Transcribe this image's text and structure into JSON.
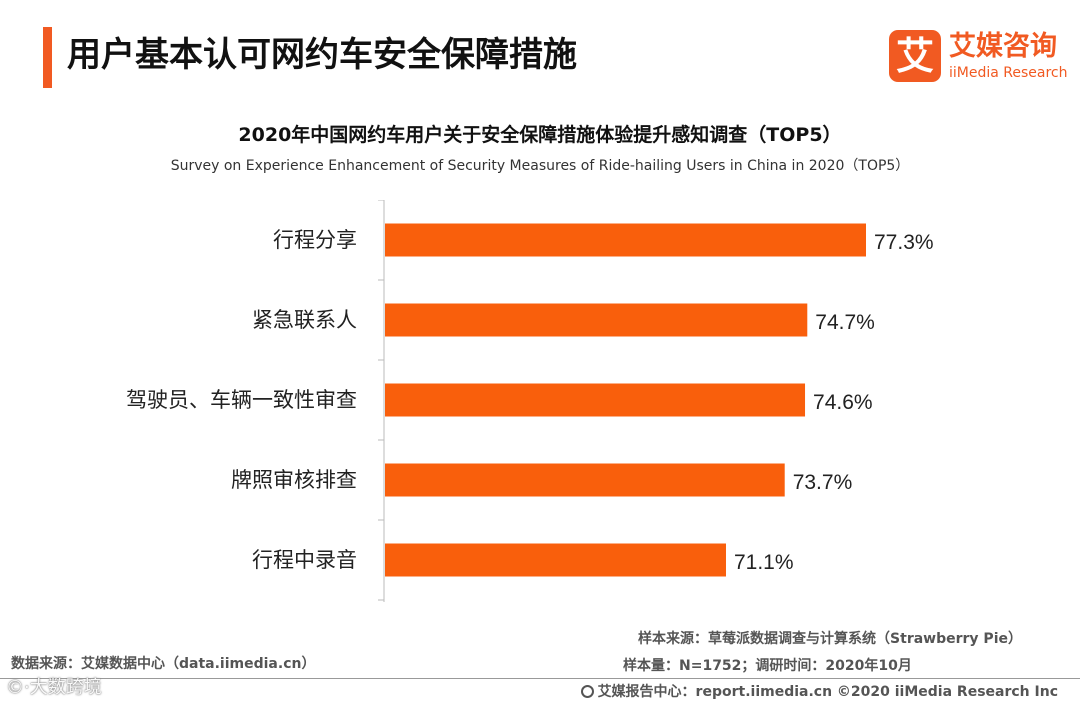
{
  "header": {
    "title": "用户基本认可网约车安全保障措施"
  },
  "logo": {
    "mark": "艾",
    "name_cn": "艾媒咨询",
    "name_en": "iiMedia Research"
  },
  "colors": {
    "accent": "#f15a22",
    "bar": "#f95f0c",
    "axis": "#bbbbbb"
  },
  "chart_data": {
    "type": "bar",
    "orientation": "horizontal",
    "title": "2020年中国网约车用户关于安全保障措施体验提升感知调查（TOP5）",
    "subtitle": "Survey on Experience Enhancement of Security Measures of Ride-hailing Users in China in 2020（TOP5）",
    "categories": [
      "行程分享",
      "紧急联系人",
      "驾驶员、车辆一致性审查",
      "牌照审核排查",
      "行程中录音"
    ],
    "values": [
      77.3,
      74.7,
      74.6,
      73.7,
      71.1
    ],
    "value_labels": [
      "77.3%",
      "74.7%",
      "74.6%",
      "73.7%",
      "71.1%"
    ],
    "unit": "%",
    "xlim": [
      56,
      77.3
    ],
    "xlabel": "",
    "ylabel": "",
    "grid": false,
    "legend": "none"
  },
  "footer": {
    "source": "数据来源：艾媒数据中心（data.iimedia.cn）",
    "sample_source": "样本来源：草莓派数据调查与计算系统（Strawberry Pie）",
    "sample_info": "样本量：N=1752；调研时间：2020年10月",
    "copyright": "艾媒报告中心：report.iimedia.cn ©2020  iiMedia Research  Inc",
    "watermark": "©·大数跨境"
  }
}
